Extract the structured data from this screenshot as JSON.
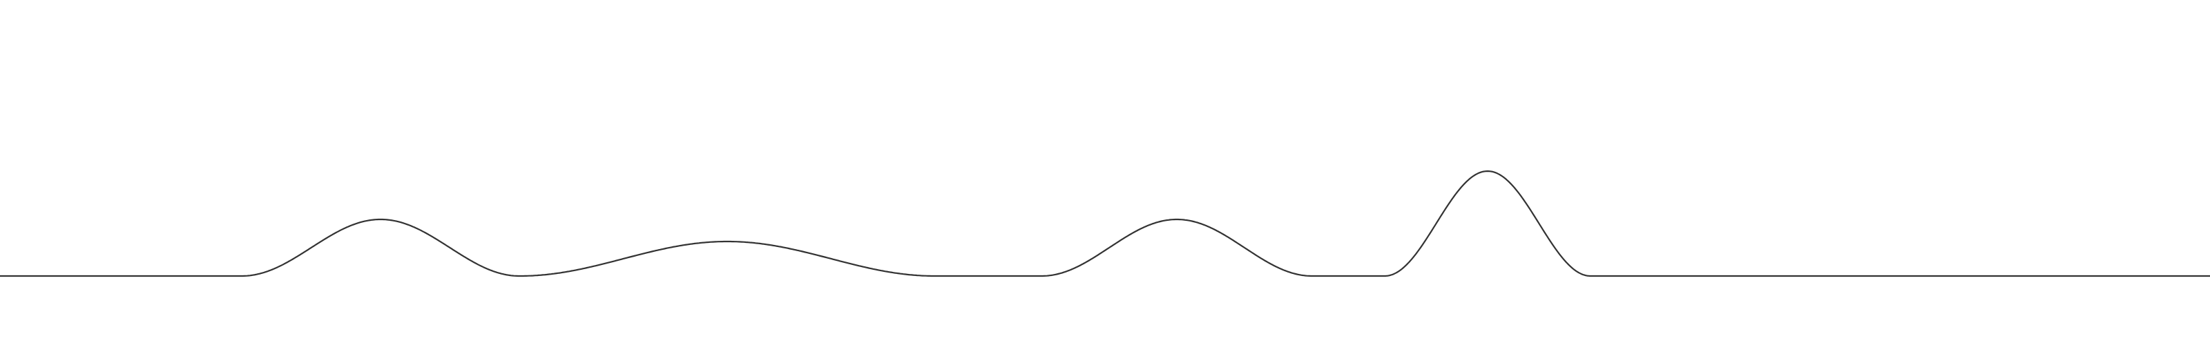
{
  "line": {
    "stroke_color": "#333333",
    "background_color": "#ffffff"
  },
  "chart_data": {
    "type": "line",
    "title": "",
    "xlabel": "",
    "ylabel": "",
    "grid": false,
    "legend": "none",
    "xlim": [
      0,
      3200
    ],
    "ylim": [
      0,
      100
    ],
    "series": [
      {
        "values_description_note": "",
        "bumps": [
          {
            "start": 350,
            "end": 752,
            "peak": 41
          },
          {
            "start": 752,
            "end": 1354,
            "peak": 25
          },
          {
            "start": 1508,
            "end": 1900,
            "peak": 41
          },
          {
            "start": 2005,
            "end": 2303,
            "peak": 76
          }
        ]
      }
    ]
  }
}
